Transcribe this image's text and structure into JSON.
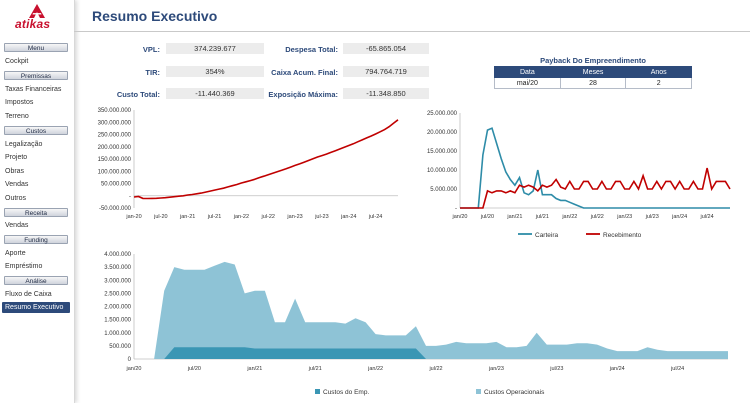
{
  "app": {
    "logo_text": "atikas",
    "title": "Resumo Executivo"
  },
  "sidebar": {
    "menu": "Menu",
    "cockpit": "Cockpit",
    "premissas": "Premissas",
    "taxas": "Taxas Financeiras",
    "impostos": "Impostos",
    "terreno": "Terreno",
    "custos": "Custos",
    "legalizacao": "Legalização",
    "projeto": "Projeto",
    "obras": "Obras",
    "vendas_c": "Vendas",
    "outros": "Outros",
    "receita": "Receita",
    "vendas_r": "Vendas",
    "funding": "Funding",
    "aporte": "Aporte",
    "emprestimo": "Empréstimo",
    "analise": "Análise",
    "fluxo": "Fluxo de Caixa",
    "resumo": "Resumo Executivo"
  },
  "kpis": {
    "vpl_label": "VPL:",
    "vpl": "374.239.677",
    "tir_label": "TIR:",
    "tir": "354%",
    "custo_label": "Custo Total:",
    "custo": "-11.440.369",
    "despesa_label": "Despesa Total:",
    "despesa": "-65.865.054",
    "caixa_label": "Caixa Acum. Final:",
    "caixa": "794.764.719",
    "exposicao_label": "Exposição Máxima:",
    "exposicao": "-11.348.850"
  },
  "payback": {
    "title": "Payback Do Empreendimento",
    "headers": [
      "Data",
      "Meses",
      "Anos"
    ],
    "row": [
      "mai/20",
      "28",
      "2"
    ]
  },
  "chart_data": [
    {
      "type": "line",
      "x_ticks": [
        "jan-20",
        "jul-20",
        "jan-21",
        "jul-21",
        "jan-22",
        "jul-22",
        "jan-23",
        "jul-23",
        "jan-24",
        "jul-24"
      ],
      "y_ticks": [
        "-50.000.000",
        "-",
        "50.000.000",
        "100.000.000",
        "150.000.000",
        "200.000.000",
        "250.000.000",
        "300.000.000",
        "350.000.000"
      ],
      "ylim": [
        -50000000,
        350000000
      ],
      "series": [
        {
          "color": "#c00000",
          "x": [
            0,
            1,
            2,
            3,
            4,
            5,
            6,
            7,
            8,
            9,
            10,
            11,
            12,
            13,
            14,
            15,
            16,
            17,
            18,
            19,
            20,
            21,
            22,
            23,
            24,
            25,
            26,
            27,
            28,
            29,
            30,
            31,
            32,
            33,
            34,
            35,
            36,
            37,
            38,
            39,
            40,
            41,
            42,
            43,
            44,
            45,
            46,
            47,
            48,
            49,
            50,
            51,
            52,
            53,
            54,
            55,
            56,
            57,
            58,
            59
          ],
          "values": [
            -5000000,
            -3000000,
            -11000000,
            -11300000,
            -11000000,
            -10500000,
            -9000000,
            -8000000,
            -6000000,
            -4000000,
            -2000000,
            0,
            3000000,
            5000000,
            8000000,
            11000000,
            15000000,
            19000000,
            23000000,
            27000000,
            31000000,
            36000000,
            41000000,
            46000000,
            52000000,
            57000000,
            62000000,
            67000000,
            74000000,
            80000000,
            86000000,
            92000000,
            98000000,
            104000000,
            110000000,
            117000000,
            124000000,
            130000000,
            137000000,
            144000000,
            151000000,
            158000000,
            164000000,
            170000000,
            177000000,
            184000000,
            191000000,
            198000000,
            205000000,
            212000000,
            220000000,
            228000000,
            236000000,
            244000000,
            252000000,
            261000000,
            270000000,
            282000000,
            296000000,
            310000000
          ]
        }
      ]
    },
    {
      "type": "line",
      "x_ticks": [
        "jan/20",
        "jul/20",
        "jan/21",
        "jul/21",
        "jan/22",
        "jul/22",
        "jan/23",
        "jul/23",
        "jan/24",
        "jul/24"
      ],
      "y_ticks": [
        "-",
        "5.000.000",
        "10.000.000",
        "15.000.000",
        "20.000.000",
        "25.000.000"
      ],
      "ylim": [
        0,
        25000000
      ],
      "series": [
        {
          "name": "Carteira",
          "color": "#2e8ca8",
          "x": [
            0,
            1,
            2,
            3,
            4,
            5,
            6,
            7,
            8,
            9,
            10,
            11,
            12,
            13,
            14,
            15,
            16,
            17,
            18,
            19,
            20,
            21,
            22,
            23,
            24,
            25,
            26,
            27,
            28,
            29,
            30,
            31,
            32,
            33,
            34,
            35,
            36,
            37,
            38,
            39,
            40,
            41,
            42,
            43,
            44,
            45,
            46,
            47,
            48,
            49,
            50,
            51,
            52,
            53,
            54,
            55,
            56,
            57,
            58,
            59
          ],
          "values": [
            0,
            0,
            0,
            0,
            0,
            14000000,
            20500000,
            21000000,
            17000000,
            13000000,
            9500000,
            7500000,
            6000000,
            8000000,
            4000000,
            3500000,
            4500000,
            10000000,
            3500000,
            3500000,
            3500000,
            2500000,
            2000000,
            2000000,
            1500000,
            1000000,
            500000,
            0,
            0,
            0,
            0,
            0,
            0,
            0,
            0,
            0,
            0,
            0,
            0,
            0,
            0,
            0,
            0,
            0,
            0,
            0,
            0,
            0,
            0,
            0,
            0,
            0,
            0,
            0,
            0,
            0,
            0,
            0,
            0,
            0
          ]
        },
        {
          "name": "Recebimento",
          "color": "#c00000",
          "x": [
            0,
            1,
            2,
            3,
            4,
            5,
            6,
            7,
            8,
            9,
            10,
            11,
            12,
            13,
            14,
            15,
            16,
            17,
            18,
            19,
            20,
            21,
            22,
            23,
            24,
            25,
            26,
            27,
            28,
            29,
            30,
            31,
            32,
            33,
            34,
            35,
            36,
            37,
            38,
            39,
            40,
            41,
            42,
            43,
            44,
            45,
            46,
            47,
            48,
            49,
            50,
            51,
            52,
            53,
            54,
            55,
            56,
            57,
            58,
            59
          ],
          "values": [
            0,
            0,
            0,
            0,
            0,
            0,
            4500000,
            4000000,
            4500000,
            4500000,
            4000000,
            4500000,
            4000000,
            6000000,
            5500000,
            6000000,
            5500000,
            4500000,
            6000000,
            5500000,
            6000000,
            7500000,
            5500000,
            5000000,
            7000000,
            5000000,
            5000000,
            7000000,
            7000000,
            5000000,
            5000000,
            7000000,
            5000000,
            5000000,
            7000000,
            7000000,
            5000000,
            5000000,
            7000000,
            5000000,
            8500000,
            5000000,
            5000000,
            7000000,
            5000000,
            7000000,
            7000000,
            5000000,
            7000000,
            5000000,
            5000000,
            7000000,
            5000000,
            5000000,
            10500000,
            5000000,
            7000000,
            7000000,
            7000000,
            5000000
          ]
        }
      ]
    },
    {
      "type": "area",
      "x_ticks": [
        "jan/20",
        "jul/20",
        "jan/21",
        "jul/21",
        "jan/22",
        "jul/22",
        "jan/23",
        "jul/23",
        "jan/24",
        "jul/24"
      ],
      "y_ticks": [
        "0",
        "500.000",
        "1.000.000",
        "1.500.000",
        "2.000.000",
        "2.500.000",
        "3.000.000",
        "3.500.000",
        "4.000.000"
      ],
      "ylim": [
        0,
        4000000
      ],
      "series": [
        {
          "name": "Custos Operacionais",
          "color": "#8ec3d6",
          "x": [
            0,
            1,
            2,
            3,
            4,
            5,
            6,
            7,
            8,
            9,
            10,
            11,
            12,
            13,
            14,
            15,
            16,
            17,
            18,
            19,
            20,
            21,
            22,
            23,
            24,
            25,
            26,
            27,
            28,
            29,
            30,
            31,
            32,
            33,
            34,
            35,
            36,
            37,
            38,
            39,
            40,
            41,
            42,
            43,
            44,
            45,
            46,
            47,
            48,
            49,
            50,
            51,
            52,
            53,
            54,
            55,
            56,
            57,
            58,
            59
          ],
          "values": [
            0,
            0,
            0,
            2600000,
            3500000,
            3400000,
            3400000,
            3400000,
            3550000,
            3700000,
            3600000,
            2500000,
            2600000,
            2600000,
            1400000,
            1400000,
            2300000,
            1400000,
            1400000,
            1400000,
            1400000,
            1350000,
            1550000,
            1400000,
            950000,
            900000,
            900000,
            900000,
            1250000,
            500000,
            500000,
            550000,
            650000,
            600000,
            600000,
            600000,
            650000,
            450000,
            450000,
            500000,
            1000000,
            550000,
            550000,
            550000,
            600000,
            600000,
            550000,
            400000,
            300000,
            300000,
            300000,
            450000,
            350000,
            300000,
            300000,
            300000,
            300000,
            300000,
            300000,
            300000
          ]
        },
        {
          "name": "Custos do Emp.",
          "color": "#3a96b4",
          "x": [
            0,
            1,
            2,
            3,
            4,
            5,
            6,
            7,
            8,
            9,
            10,
            11,
            12,
            13,
            14,
            15,
            16,
            17,
            18,
            19,
            20,
            21,
            22,
            23,
            24,
            25,
            26,
            27,
            28,
            29,
            30,
            31,
            32,
            33,
            34,
            35,
            36,
            37,
            38,
            39,
            40,
            41,
            42,
            43,
            44,
            45,
            46,
            47,
            48,
            49,
            50,
            51,
            52,
            53,
            54,
            55,
            56,
            57,
            58,
            59
          ],
          "values": [
            0,
            0,
            0,
            0,
            450000,
            450000,
            450000,
            450000,
            450000,
            450000,
            450000,
            450000,
            400000,
            400000,
            400000,
            400000,
            400000,
            400000,
            400000,
            400000,
            400000,
            400000,
            400000,
            400000,
            400000,
            400000,
            400000,
            400000,
            400000,
            0,
            0,
            0,
            0,
            0,
            0,
            0,
            0,
            0,
            0,
            0,
            0,
            0,
            0,
            0,
            0,
            0,
            0,
            0,
            0,
            0,
            0,
            0,
            0,
            0,
            0,
            0,
            0,
            0,
            0,
            0
          ]
        }
      ]
    }
  ]
}
